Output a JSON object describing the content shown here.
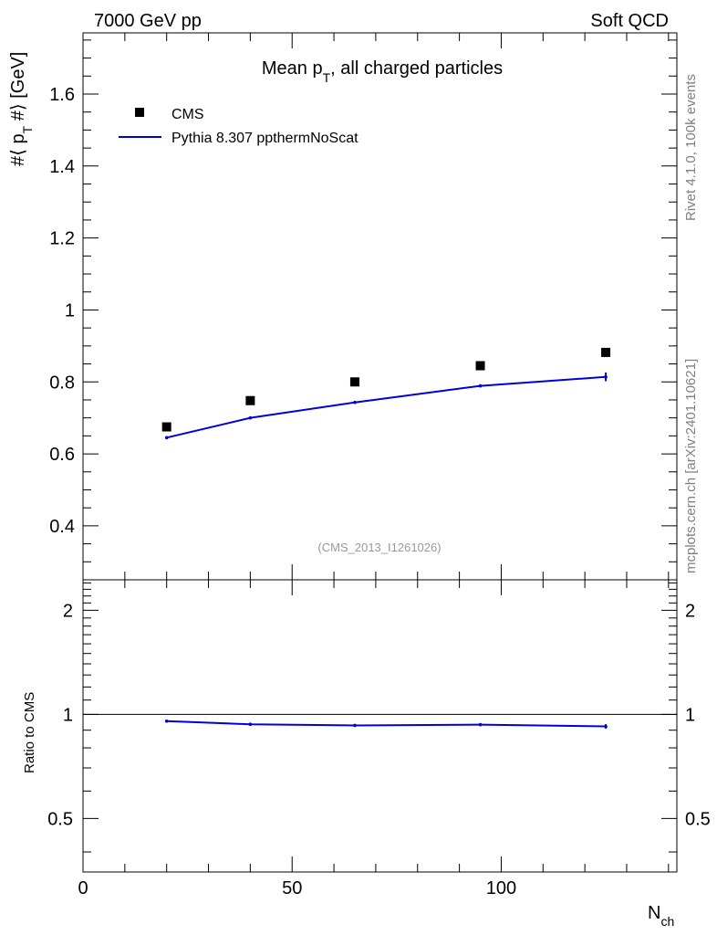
{
  "header": {
    "left": "7000 GeV pp",
    "right": "Soft QCD"
  },
  "side_labels": {
    "upper": "Rivet 4.1.0,  100k events",
    "lower": "mcplots.cern.ch [arXiv:2401.10621]"
  },
  "chart_data": [
    {
      "type": "scatter",
      "title": "Mean p",
      "title_sub": "T",
      "title_rest": ", all charged particles",
      "ylabel": "#⟨ p",
      "ylabel_sub": "T",
      "ylabel_rest": " #⟩ [GeV]",
      "xlim": [
        0,
        142
      ],
      "ylim": [
        0.25,
        1.77
      ],
      "yticks": [
        0.4,
        0.6,
        0.8,
        1,
        1.2,
        1.4,
        1.6
      ],
      "ytick_labels": [
        "0.4",
        "0.6",
        "0.8",
        "1",
        "1.2",
        "1.4",
        "1.6"
      ],
      "annotation": "(CMS_2013_I1261026)",
      "legend": {
        "placement": "top-left",
        "entries": [
          "CMS",
          "Pythia 8.307 ppthermNoScat"
        ]
      },
      "series": [
        {
          "name": "CMS",
          "kind": "markers",
          "color": "#000000",
          "x": [
            20,
            40,
            65,
            95,
            125
          ],
          "y": [
            0.675,
            0.748,
            0.8,
            0.845,
            0.882
          ]
        },
        {
          "name": "Pythia 8.307 ppthermNoScat",
          "kind": "line",
          "color": "#0000dd",
          "x": [
            20,
            40,
            65,
            95,
            125
          ],
          "y": [
            0.645,
            0.7,
            0.743,
            0.789,
            0.814
          ],
          "yerr": [
            0.002,
            0.002,
            0.002,
            0.004,
            0.012
          ]
        }
      ]
    },
    {
      "type": "line",
      "ylabel": "Ratio to CMS",
      "xlabel": "N",
      "xlabel_sub": "ch",
      "xlim": [
        0,
        142
      ],
      "ylim": [
        0.35,
        2.45
      ],
      "log_y": true,
      "reference": 1,
      "yticks": [
        0.5,
        1,
        2
      ],
      "ytick_labels": [
        "0.5",
        "1",
        "2"
      ],
      "xticks": [
        0,
        50,
        100
      ],
      "xtick_labels": [
        "0",
        "50",
        "100"
      ],
      "series": [
        {
          "name": "Pythia 8.307 ppthermNoScat / CMS",
          "color": "#0000dd",
          "x": [
            20,
            40,
            65,
            95,
            125
          ],
          "y": [
            0.956,
            0.936,
            0.929,
            0.934,
            0.923
          ],
          "yerr": [
            0.003,
            0.003,
            0.003,
            0.005,
            0.014
          ]
        }
      ]
    }
  ]
}
